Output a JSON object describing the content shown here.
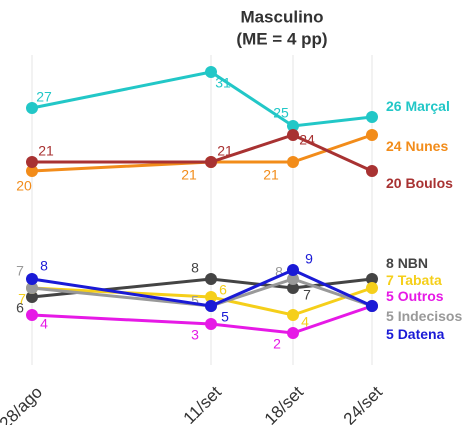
{
  "chart_data": {
    "type": "line",
    "title": "Masculino",
    "subtitle": "(ME = 4 pp)",
    "categories": [
      "28/ago",
      "11/set",
      "18/set",
      "24/set"
    ],
    "ylim": [
      0,
      34
    ],
    "grid": true,
    "series": [
      {
        "name": "Marçal",
        "color": "#22c7c7",
        "values": [
          27,
          31,
          25,
          26
        ]
      },
      {
        "name": "Nunes",
        "color": "#f28c1a",
        "values": [
          20,
          21,
          21,
          24
        ]
      },
      {
        "name": "Boulos",
        "color": "#a83232",
        "values": [
          21,
          21,
          24,
          20
        ]
      },
      {
        "name": "NBN",
        "color": "#444444",
        "values": [
          6,
          8,
          7,
          8
        ]
      },
      {
        "name": "Tabata",
        "color": "#f5cf1a",
        "values": [
          7,
          6,
          4,
          7
        ]
      },
      {
        "name": "Outros",
        "color": "#e619e6",
        "values": [
          4,
          3,
          2,
          5
        ]
      },
      {
        "name": "Indecisos",
        "color": "#999999",
        "values": [
          7,
          5,
          8,
          5
        ]
      },
      {
        "name": "Datena",
        "color": "#1a1ad6",
        "values": [
          8,
          5,
          9,
          5
        ]
      }
    ]
  }
}
